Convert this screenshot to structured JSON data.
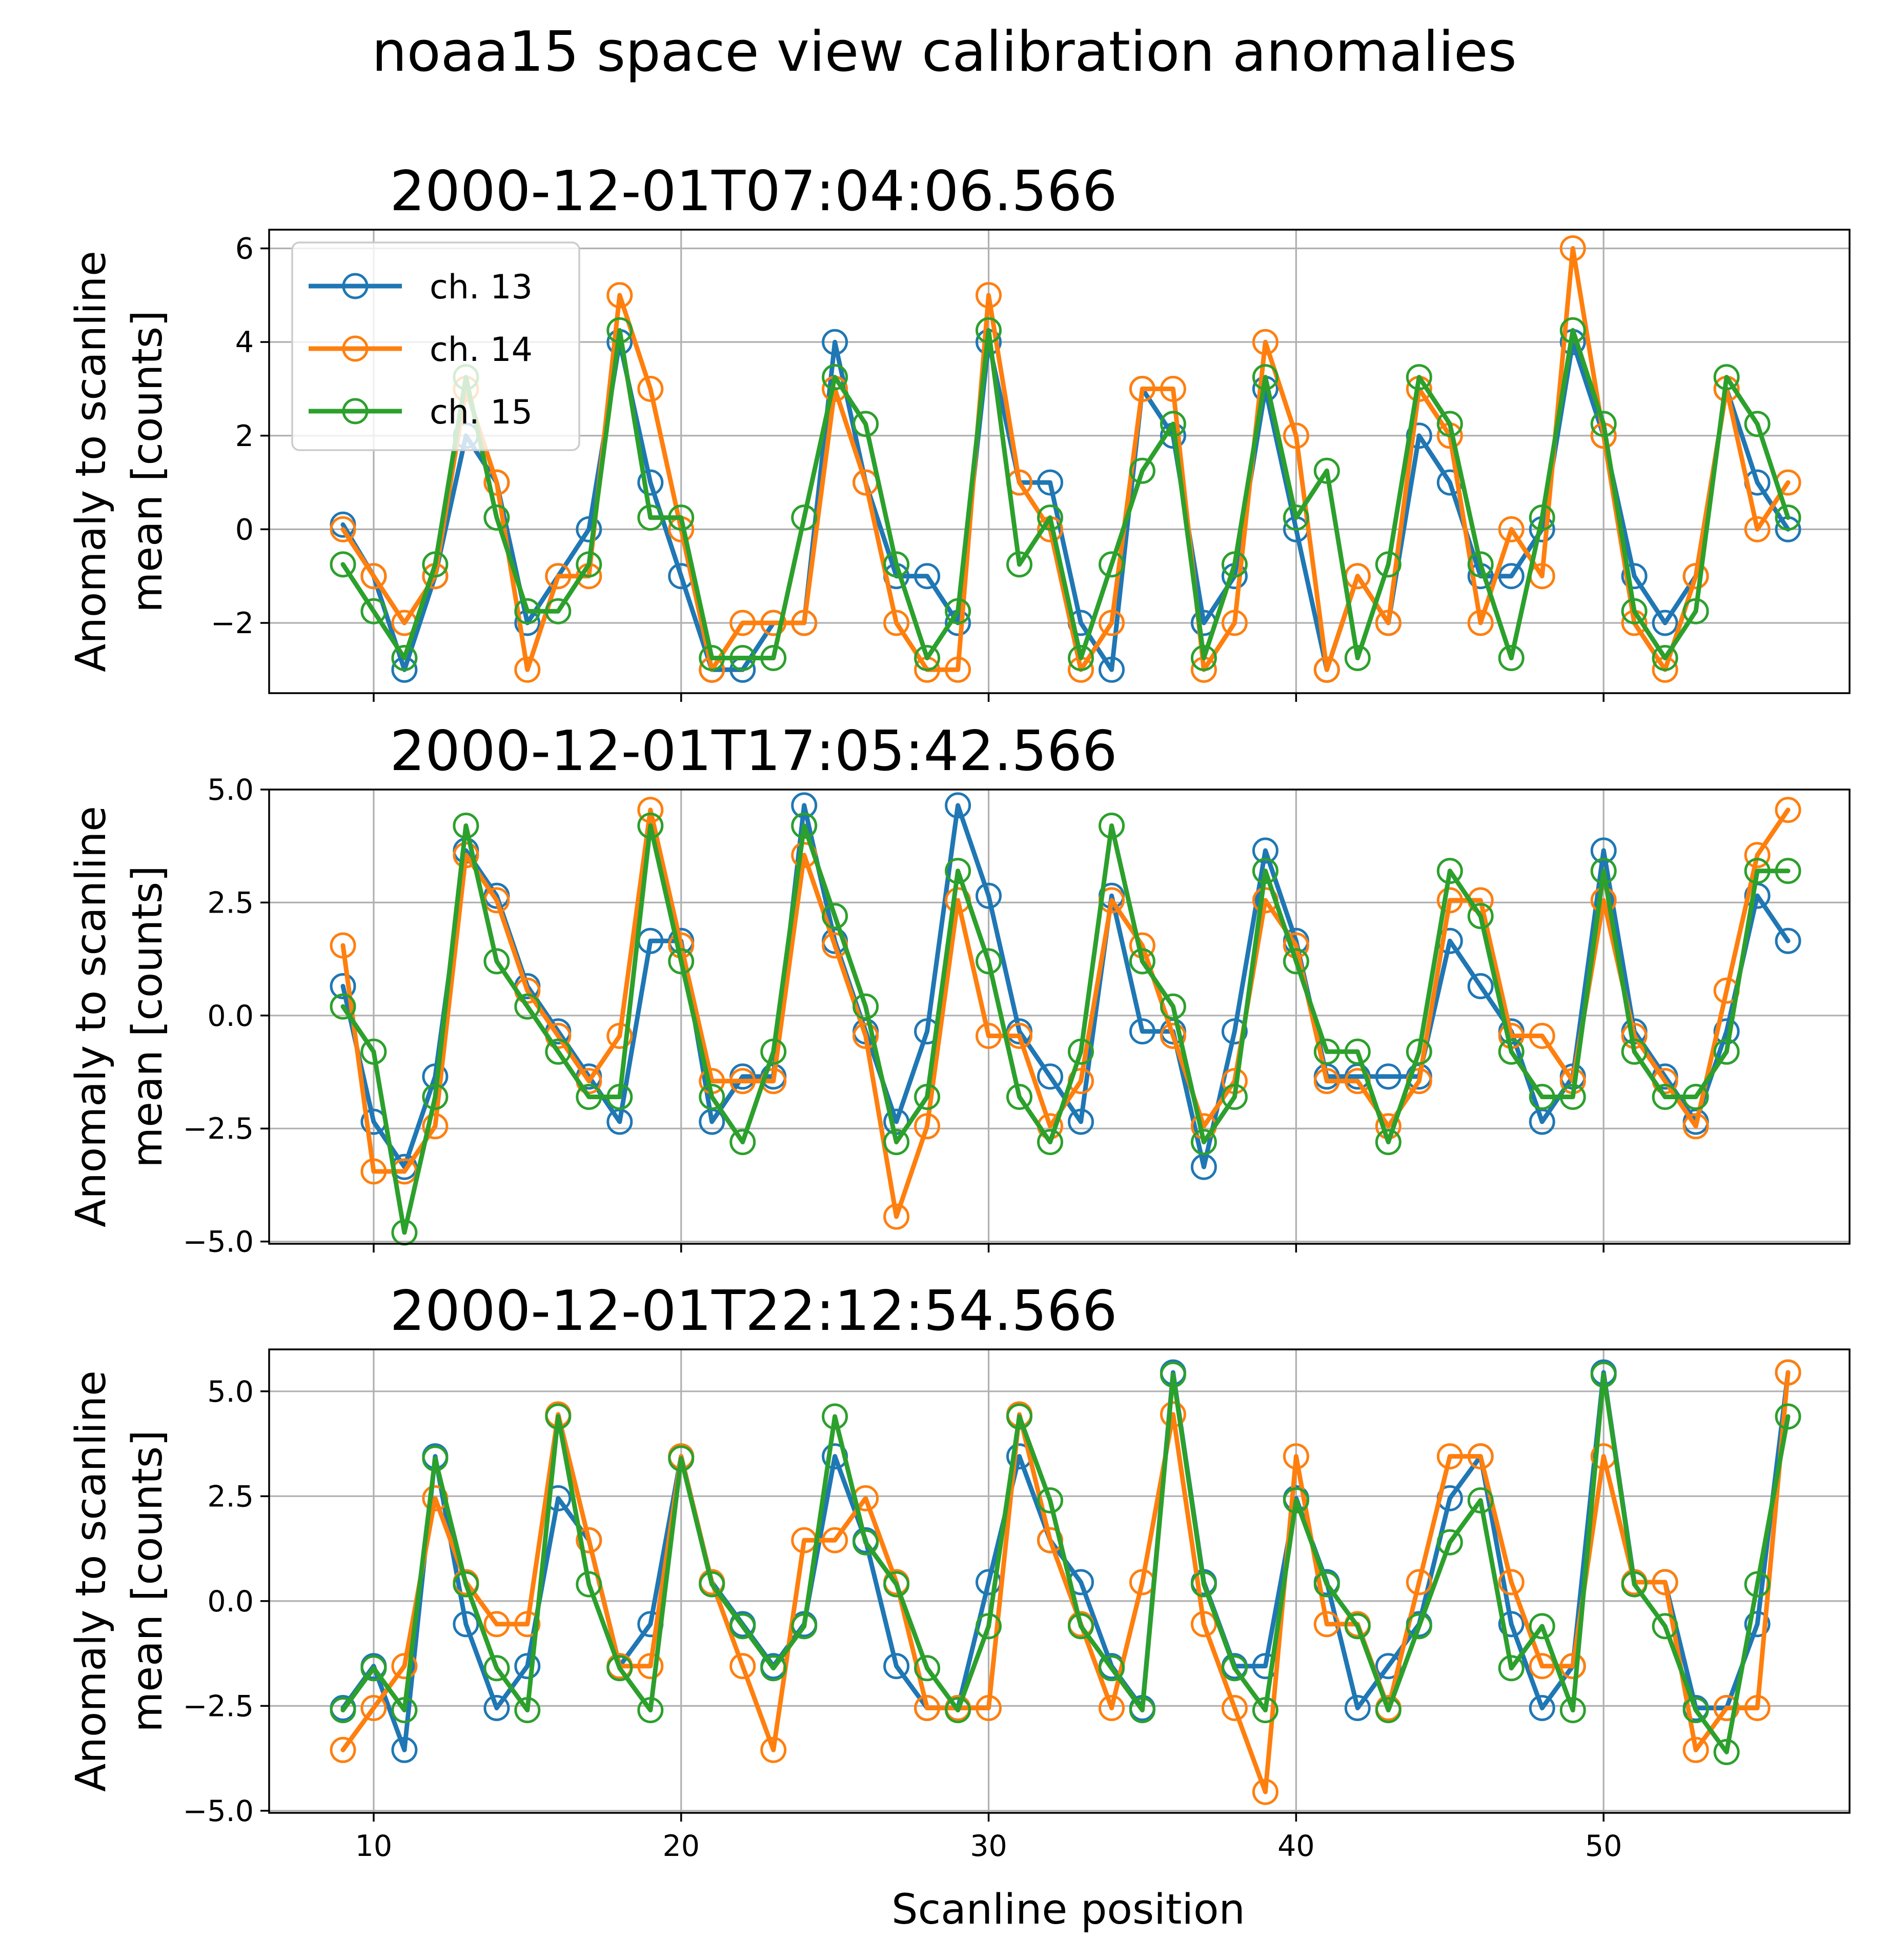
{
  "chart_data": {
    "type": "line",
    "suptitle": "noaa15 space view calibration anomalies",
    "xlabel": "Scanline position",
    "ylabel_line1": "Anomaly to scanline",
    "ylabel_line2": "mean [counts]",
    "x": [
      9,
      10,
      11,
      12,
      13,
      14,
      15,
      16,
      17,
      18,
      19,
      20,
      21,
      22,
      23,
      24,
      25,
      26,
      27,
      28,
      29,
      30,
      31,
      32,
      33,
      34,
      35,
      36,
      37,
      38,
      39,
      40,
      41,
      42,
      43,
      44,
      45,
      46,
      47,
      48,
      49,
      50,
      51,
      52,
      53,
      54,
      55,
      56
    ],
    "xlim": [
      6.6,
      58.0
    ],
    "xticks": [
      10,
      20,
      30,
      40,
      50
    ],
    "xtick_labels": [
      "10",
      "20",
      "30",
      "40",
      "50"
    ],
    "colors": {
      "ch13": "#1f77b4",
      "ch14": "#ff7f0e",
      "ch15": "#2ca02c"
    },
    "legend": [
      "ch. 13",
      "ch. 14",
      "ch. 15"
    ],
    "legend_loc": "upper left",
    "grid": true,
    "panels": [
      {
        "title": "2000-12-01T07:04:06.566",
        "ylim": [
          -3.5,
          6.4
        ],
        "yticks": [
          -2,
          0,
          2,
          4,
          6
        ],
        "ytick_labels": [
          "−2",
          "0",
          "2",
          "4",
          "6"
        ],
        "series": [
          {
            "name": "ch. 13",
            "values": [
              0.1,
              -1,
              -3,
              -1,
              2,
              1,
              -2,
              -1,
              0,
              4,
              1,
              -1,
              -3,
              -3,
              -2,
              -2,
              4,
              1,
              -1,
              -1,
              -2,
              4,
              1,
              1,
              -2,
              -3,
              3,
              2,
              -2,
              -1,
              3,
              0,
              -3,
              -1,
              -2,
              2,
              1,
              -1,
              -1,
              0,
              4,
              2,
              -1,
              -2,
              -1,
              3,
              1,
              0
            ]
          },
          {
            "name": "ch. 14",
            "values": [
              0,
              -1,
              -2,
              -1,
              3,
              1,
              -3,
              -1,
              -1,
              5,
              3,
              0,
              -3,
              -2,
              -2,
              -2,
              3,
              1,
              -2,
              -3,
              -3,
              5,
              1,
              0,
              -3,
              -2,
              3,
              3,
              -3,
              -2,
              4,
              2,
              -3,
              -1,
              -2,
              3,
              2,
              -2,
              0,
              -1,
              6,
              2,
              -2,
              -3,
              -1,
              3,
              0,
              1
            ]
          },
          {
            "name": "ch. 15",
            "values": [
              -0.75,
              -1.75,
              -2.75,
              -0.75,
              3.25,
              0.25,
              -1.75,
              -1.75,
              -0.75,
              4.25,
              0.25,
              0.25,
              -2.75,
              -2.75,
              -2.75,
              0.25,
              3.25,
              2.25,
              -0.75,
              -2.75,
              -1.75,
              4.25,
              -0.75,
              0.25,
              -2.75,
              -0.75,
              1.25,
              2.25,
              -2.75,
              -0.75,
              3.25,
              0.25,
              1.25,
              -2.75,
              -0.75,
              3.25,
              2.25,
              -0.75,
              -2.75,
              0.25,
              4.25,
              2.25,
              -1.75,
              -2.75,
              -1.75,
              3.25,
              2.25,
              0.25
            ]
          }
        ]
      },
      {
        "title": "2000-12-01T17:05:42.566",
        "ylim": [
          -5.05,
          5.0
        ],
        "yticks": [
          -5.0,
          -2.5,
          0.0,
          2.5,
          5.0
        ],
        "ytick_labels": [
          "−5.0",
          "−2.5",
          "0.0",
          "2.5",
          "5.0"
        ],
        "series": [
          {
            "name": "ch. 13",
            "values": [
              0.65,
              -2.35,
              -3.35,
              -1.35,
              3.65,
              2.65,
              0.65,
              -0.35,
              -1.35,
              -2.35,
              1.65,
              1.65,
              -2.35,
              -1.35,
              -1.35,
              4.65,
              1.65,
              -0.35,
              -2.35,
              -0.35,
              4.65,
              2.65,
              -0.35,
              -1.35,
              -2.35,
              2.65,
              -0.35,
              -0.35,
              -3.35,
              -0.35,
              3.65,
              1.65,
              -1.35,
              -1.35,
              -1.35,
              -1.35,
              1.65,
              0.65,
              -0.35,
              -2.35,
              -1.35,
              3.65,
              -0.35,
              -1.35,
              -2.35,
              -0.35,
              2.65,
              1.65
            ]
          },
          {
            "name": "ch. 14",
            "values": [
              1.55,
              -3.45,
              -3.45,
              -2.45,
              3.55,
              2.55,
              0.55,
              -0.45,
              -1.45,
              -0.45,
              4.55,
              1.55,
              -1.45,
              -1.45,
              -1.45,
              3.55,
              1.55,
              -0.45,
              -4.45,
              -2.45,
              2.55,
              -0.45,
              -0.45,
              -2.45,
              -1.45,
              2.55,
              1.55,
              -0.45,
              -2.45,
              -1.45,
              2.55,
              1.55,
              -1.45,
              -1.45,
              -2.45,
              -1.45,
              2.55,
              2.55,
              -0.45,
              -0.45,
              -1.45,
              2.55,
              -0.45,
              -1.45,
              -2.45,
              0.55,
              3.55,
              4.55
            ]
          },
          {
            "name": "ch. 15",
            "values": [
              0.2,
              -0.8,
              -4.8,
              -1.8,
              4.2,
              1.2,
              0.2,
              -0.8,
              -1.8,
              -1.8,
              4.2,
              1.2,
              -1.8,
              -2.8,
              -0.8,
              4.2,
              2.2,
              0.2,
              -2.8,
              -1.8,
              3.2,
              1.2,
              -1.8,
              -2.8,
              -0.8,
              4.2,
              1.2,
              0.2,
              -2.8,
              -1.8,
              3.2,
              1.2,
              -0.8,
              -0.8,
              -2.8,
              -0.8,
              3.2,
              2.2,
              -0.8,
              -1.8,
              -1.8,
              3.2,
              -0.8,
              -1.8,
              -1.8,
              -0.8,
              3.2,
              3.2
            ]
          }
        ]
      },
      {
        "title": "2000-12-01T22:12:54.566",
        "ylim": [
          -5.05,
          6.0
        ],
        "yticks": [
          -5.0,
          -2.5,
          0.0,
          2.5,
          5.0
        ],
        "ytick_labels": [
          "−5.0",
          "−2.5",
          "0.0",
          "2.5",
          "5.0"
        ],
        "series": [
          {
            "name": "ch. 13",
            "values": [
              -2.55,
              -1.55,
              -3.55,
              3.45,
              -0.55,
              -2.55,
              -1.55,
              2.45,
              1.45,
              -1.55,
              -0.55,
              3.45,
              0.45,
              -0.55,
              -1.55,
              -0.55,
              3.45,
              1.45,
              -1.55,
              -2.55,
              -2.55,
              0.45,
              3.45,
              1.45,
              0.45,
              -1.55,
              -2.55,
              5.45,
              0.45,
              -1.55,
              -1.55,
              2.45,
              0.45,
              -2.55,
              -1.55,
              -0.55,
              2.45,
              3.45,
              -0.55,
              -2.55,
              -1.55,
              5.45,
              0.45,
              0.45,
              -2.55,
              -2.55,
              -0.55,
              5.45
            ]
          },
          {
            "name": "ch. 14",
            "values": [
              -3.55,
              -2.55,
              -1.55,
              2.45,
              0.45,
              -0.55,
              -0.55,
              4.45,
              1.45,
              -1.55,
              -1.55,
              3.45,
              0.45,
              -1.55,
              -3.55,
              1.45,
              1.45,
              2.45,
              0.45,
              -2.55,
              -2.55,
              -2.55,
              4.45,
              1.45,
              -0.55,
              -2.55,
              0.45,
              4.45,
              -0.55,
              -2.55,
              -4.55,
              3.45,
              -0.55,
              -0.55,
              -2.55,
              0.45,
              3.45,
              3.45,
              0.45,
              -1.55,
              -1.55,
              3.45,
              0.45,
              0.45,
              -3.55,
              -2.55,
              -2.55,
              5.45
            ]
          },
          {
            "name": "ch. 15",
            "values": [
              -2.6,
              -1.6,
              -2.6,
              3.4,
              0.4,
              -1.6,
              -2.6,
              4.4,
              0.4,
              -1.6,
              -2.6,
              3.4,
              0.4,
              -0.6,
              -1.6,
              -0.6,
              4.4,
              1.4,
              0.4,
              -1.6,
              -2.6,
              -0.6,
              4.4,
              2.4,
              -0.6,
              -1.6,
              -2.6,
              5.4,
              0.4,
              -1.6,
              -2.6,
              2.4,
              0.4,
              -0.6,
              -2.6,
              -0.6,
              1.4,
              2.4,
              -1.6,
              -0.6,
              -2.6,
              5.4,
              0.4,
              -0.6,
              -2.6,
              -3.6,
              0.4,
              4.4
            ]
          }
        ]
      }
    ]
  }
}
